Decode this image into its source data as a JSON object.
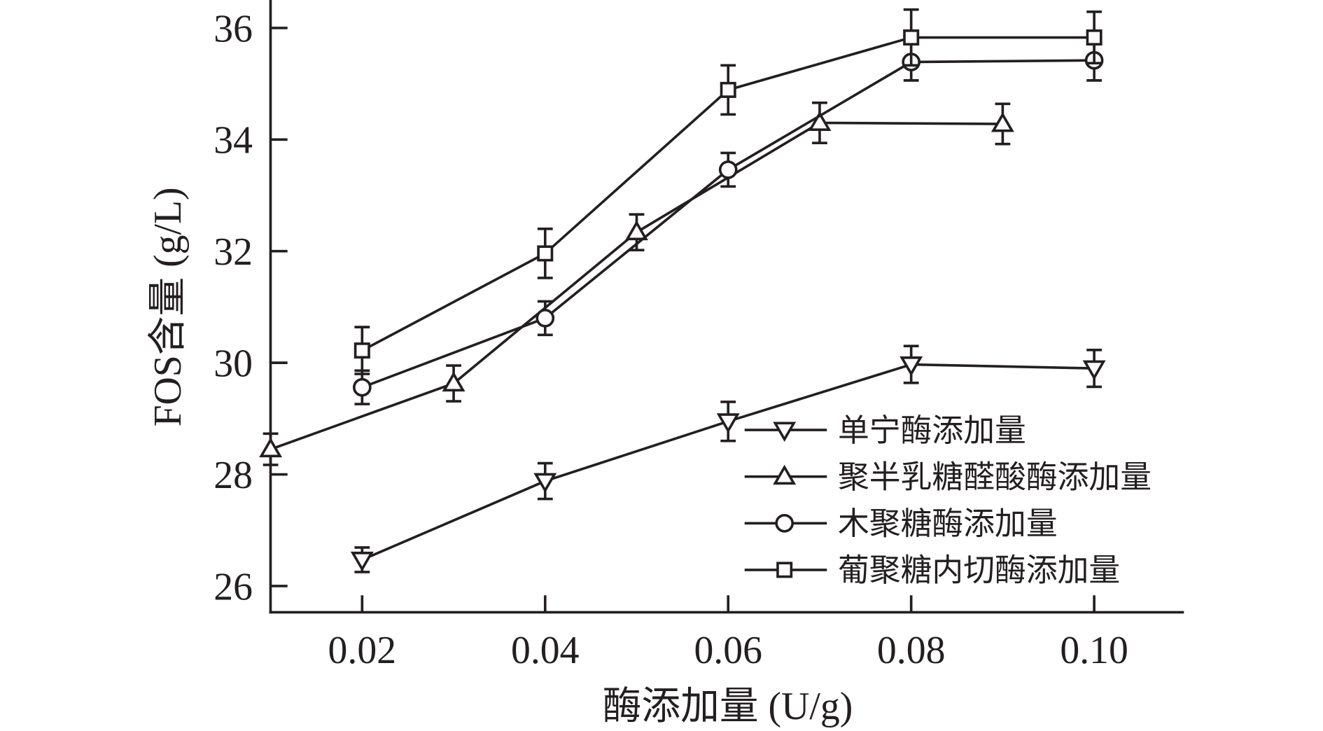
{
  "chart_data": {
    "type": "line",
    "title": "",
    "xlabel": "酶添加量 (U/g)",
    "ylabel": "FOS含量 (g/L)",
    "xlim": [
      0.01,
      0.111
    ],
    "ylim": [
      25.5,
      36.5
    ],
    "xticks": [
      0.02,
      0.04,
      0.06,
      0.08,
      0.1
    ],
    "xtick_labels": [
      "0.02",
      "0.04",
      "0.06",
      "0.08",
      "0.10"
    ],
    "yticks": [
      26,
      28,
      30,
      32,
      34,
      36
    ],
    "ytick_labels": [
      "26",
      "28",
      "30",
      "32",
      "34",
      "36"
    ],
    "grid": false,
    "legend_position": "bottom-right",
    "color": "#231f20",
    "series": [
      {
        "name": "单宁酶添加量",
        "marker": "triangle-down",
        "x": [
          0.02,
          0.04,
          0.06,
          0.08,
          0.1
        ],
        "y": [
          26.47,
          27.88,
          28.95,
          29.97,
          29.9
        ],
        "err": [
          0.22,
          0.32,
          0.35,
          0.33,
          0.33
        ]
      },
      {
        "name": "聚半乳糖醛酸酶添加量",
        "marker": "triangle-up",
        "x": [
          0.01,
          0.03,
          0.05,
          0.07,
          0.09
        ],
        "y": [
          28.45,
          29.63,
          32.34,
          34.3,
          34.28
        ],
        "err": [
          0.28,
          0.32,
          0.32,
          0.36,
          0.36
        ]
      },
      {
        "name": "木聚糖酶添加量",
        "marker": "circle",
        "x": [
          0.02,
          0.04,
          0.06,
          0.08,
          0.1
        ],
        "y": [
          29.56,
          30.8,
          33.46,
          35.39,
          35.42
        ],
        "err": [
          0.3,
          0.3,
          0.3,
          0.33,
          0.36
        ]
      },
      {
        "name": "葡聚糖内切酶添加量",
        "marker": "square",
        "x": [
          0.02,
          0.04,
          0.06,
          0.08,
          0.1
        ],
        "y": [
          30.22,
          31.96,
          34.89,
          35.83,
          35.83
        ],
        "err": [
          0.42,
          0.44,
          0.44,
          0.5,
          0.46
        ]
      }
    ]
  }
}
